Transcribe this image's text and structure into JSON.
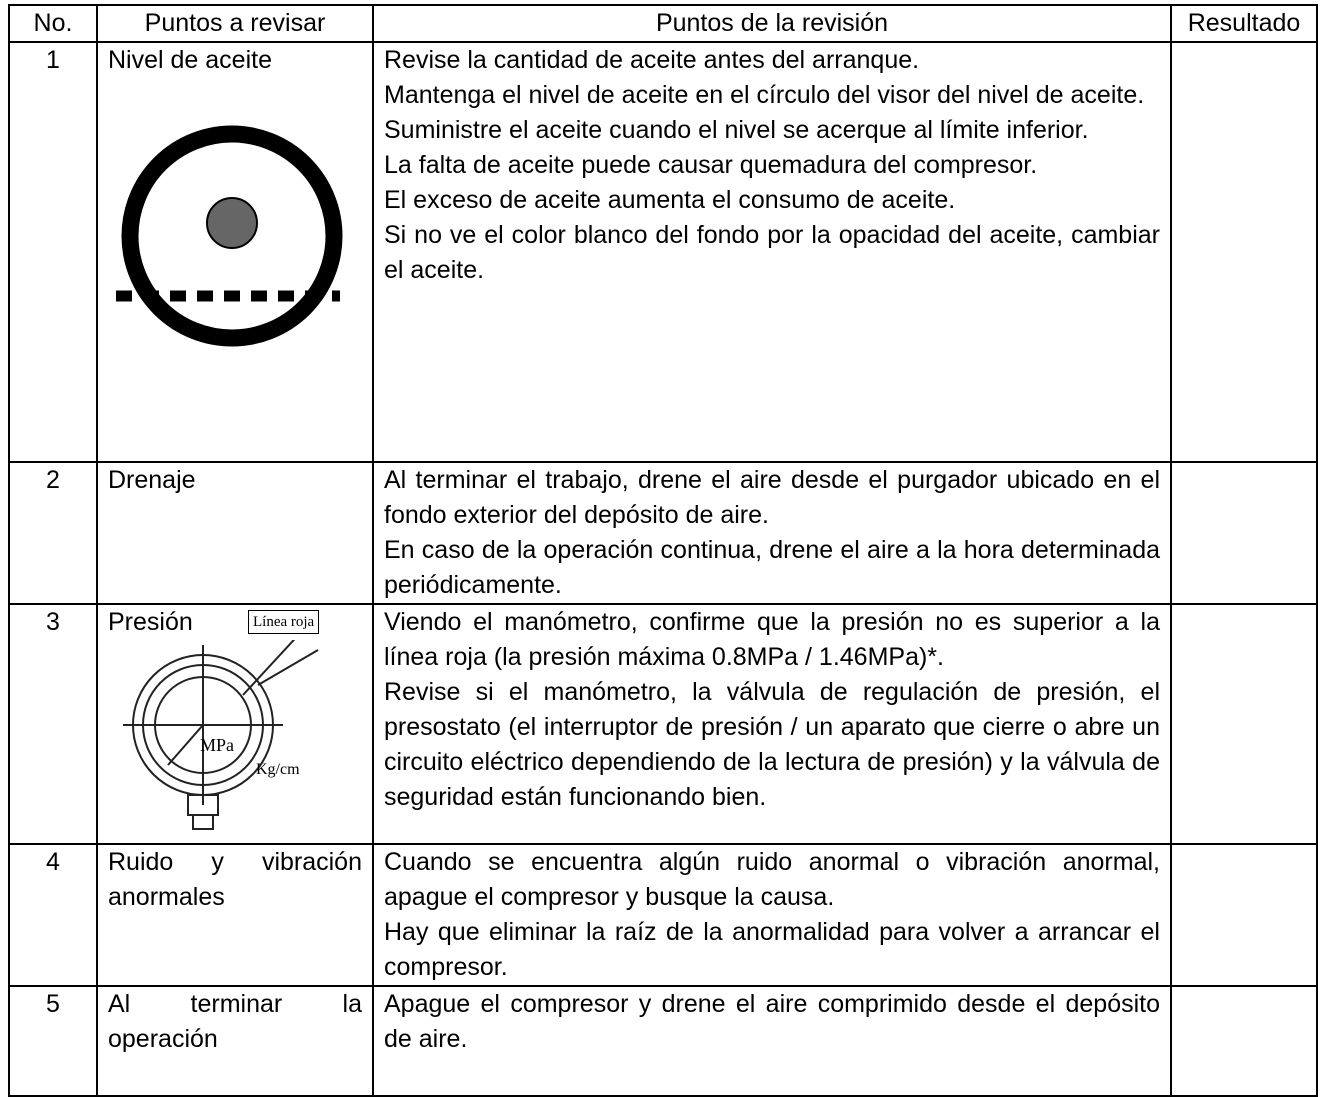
{
  "table": {
    "header": [
      "No.",
      "Puntos a revisar",
      "Puntos de la revisión",
      "Resultado"
    ],
    "rows": [
      {
        "no": "1",
        "item": "Nivel de aceite",
        "details": [
          "Revise la cantidad de aceite antes del arranque.",
          "Mantenga el nivel de aceite en el círculo del visor del nivel de aceite.",
          "Suministre el aceite cuando el nivel se acerque al límite inferior.",
          "La falta de aceite puede causar quemadura del compresor.",
          "El exceso de aceite aumenta el consumo de aceite.",
          "Si no ve el color blanco del fondo por la opacidad del aceite, cambiar el aceite."
        ]
      },
      {
        "no": "2",
        "item": "Drenaje",
        "details": [
          "Al terminar el trabajo, drene el aire desde el purgador ubicado en el fondo exterior del depósito de aire.",
          "En caso de la operación continua, drene el aire a la hora determinada periódicamente."
        ]
      },
      {
        "no": "3",
        "item": "Presión",
        "figure_labels": [
          "Línea roja",
          "MPa",
          "Kg/cm"
        ],
        "details": [
          "Viendo el manómetro, confirme que la presión no es superior a la línea roja (la presión máxima 0.8MPa / 1.46MPa)*.",
          "Revise si el manómetro, la válvula de regulación de presión, el presostato (el interruptor de presión / un aparato que cierre o abre un circuito eléctrico dependiendo de la lectura de presión) y la válvula de seguridad están funcionando bien."
        ]
      },
      {
        "no": "4",
        "item": "Ruido y vibración anormales",
        "details": [
          "Cuando se encuentra algún ruido anormal o vibración anormal, apague el compresor y busque la causa.",
          "Hay que eliminar la raíz de la anormalidad para volver a arrancar el compresor."
        ]
      },
      {
        "no": "5",
        "item": "Al terminar la operación",
        "details": [
          "Apague el compresor y drene el aire comprimido desde el depósito de aire."
        ]
      }
    ]
  }
}
